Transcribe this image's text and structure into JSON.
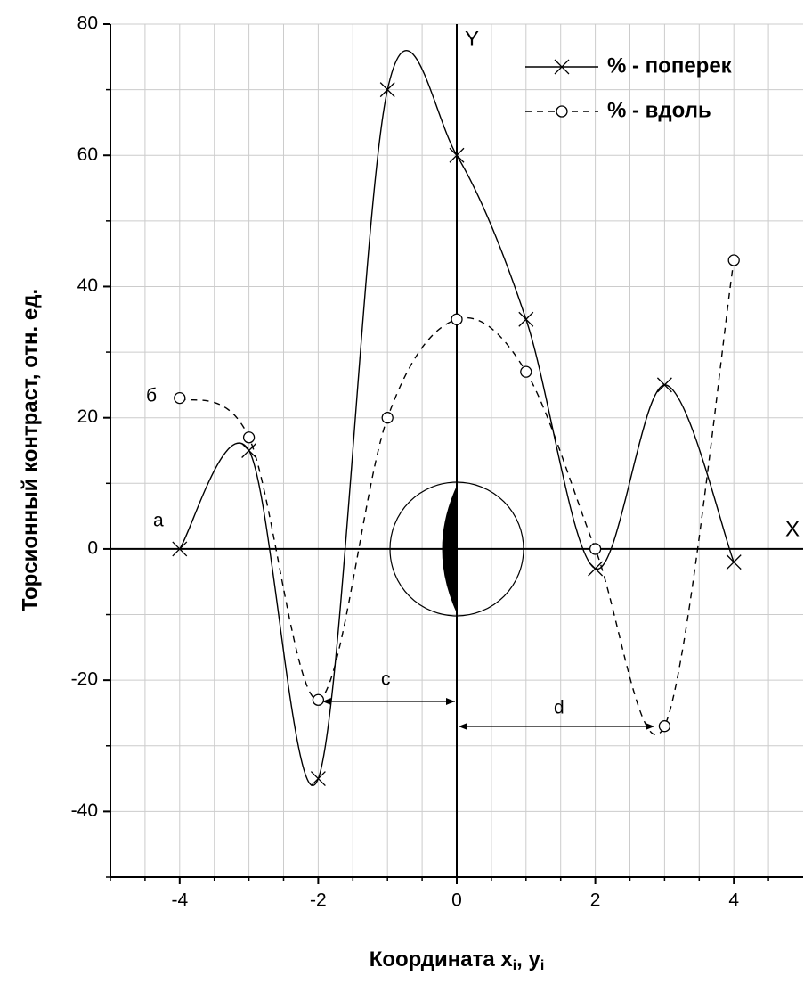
{
  "chart_data": {
    "type": "line",
    "y_label": "Торсионный контраст, отн. ед.",
    "x_label_parts": [
      "Координата x",
      "i",
      ", y",
      "i"
    ],
    "x": [
      -4,
      -3,
      -2,
      -1,
      0,
      1,
      2,
      3,
      4
    ],
    "series": [
      {
        "name": "% - поперек",
        "color": "#000000",
        "dash": false,
        "marker": "x",
        "values": [
          0,
          15,
          -35,
          70,
          60,
          35,
          -3,
          25,
          -2
        ]
      },
      {
        "name": "% - вдоль",
        "color": "#000000",
        "dash": true,
        "marker": "o",
        "values": [
          23,
          17,
          -23,
          20,
          35,
          27,
          0,
          -27,
          44
        ]
      }
    ],
    "xlim": [
      -5,
      5
    ],
    "ylim": [
      -50,
      80
    ],
    "xticks": [
      -4,
      -2,
      0,
      2,
      4
    ],
    "yticks": [
      -40,
      -20,
      0,
      20,
      40,
      60,
      80
    ],
    "minor_xticks": [
      -5,
      -4.5,
      -3.5,
      -3,
      -2.5,
      -1.5,
      -1,
      -0.5,
      0.5,
      1,
      1.5,
      2.5,
      3,
      3.5,
      4.5
    ],
    "minor_yticks": [
      -50,
      -30,
      -10,
      10,
      30,
      50,
      70
    ],
    "grid": true,
    "legend": "upper right",
    "annotations": {
      "a": "а",
      "b": "б",
      "c": "c",
      "d": "d",
      "x_axis": "X",
      "y_axis": "Y"
    }
  }
}
